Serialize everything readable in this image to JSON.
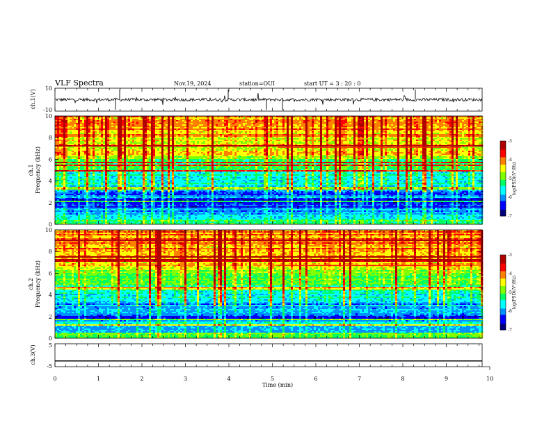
{
  "header": {
    "title": "VLF Spectra",
    "date": "Nov.19, 2024",
    "station": "station=OUI",
    "start": "start  UT =   3 : 20 : 0"
  },
  "colors": {
    "colormap": [
      "#00007a",
      "#0000ff",
      "#0090ff",
      "#00ffff",
      "#00ff60",
      "#7fff00",
      "#ffff00",
      "#ff8000",
      "#ff0000",
      "#b00000"
    ]
  },
  "chart_data": [
    {
      "type": "line",
      "id": "ch1",
      "ylabel": "ch.1(V)",
      "ylim": [
        -10,
        10
      ],
      "yticks": [
        "10",
        "-10"
      ],
      "trace_level": 0,
      "description_of_series": "broadband waveform amplitude, noisy with spikes"
    },
    {
      "type": "heatmap",
      "id": "spec1",
      "ylabel": "ch.1\nFrequency (kHz)",
      "ylim": [
        0,
        10
      ],
      "yticks": [
        "0",
        "2",
        "4",
        "6",
        "8",
        "10"
      ],
      "colorbar": {
        "label": "log(PSD)(V²/Hz)",
        "min": -7,
        "max": -3,
        "ticks": [
          "-3",
          "-4",
          "-5",
          "-6",
          "-7"
        ]
      },
      "bands_khz": [
        {
          "from": 0,
          "to": 0.6,
          "logpsd": -5.2
        },
        {
          "from": 0.6,
          "to": 1.6,
          "logpsd": -5.9
        },
        {
          "from": 1.6,
          "to": 2.4,
          "logpsd": -6.3
        },
        {
          "from": 2.4,
          "to": 3.6,
          "logpsd": -6.1
        },
        {
          "from": 3.6,
          "to": 5.0,
          "logpsd": -5.6
        },
        {
          "from": 5.0,
          "to": 6.4,
          "logpsd": -5.0
        },
        {
          "from": 6.4,
          "to": 8.0,
          "logpsd": -4.5
        },
        {
          "from": 8.0,
          "to": 10,
          "logpsd": -4.2
        }
      ],
      "tone_line_khz": 7.1
    },
    {
      "type": "heatmap",
      "id": "spec2",
      "ylabel": "ch.2\nFrequency (kHz)",
      "ylim": [
        0,
        10
      ],
      "yticks": [
        "0",
        "2",
        "4",
        "6",
        "8",
        "10"
      ],
      "colorbar": {
        "label": "log(PSD)(V²/Hz)",
        "min": -7,
        "max": -3,
        "ticks": [
          "-3",
          "-4",
          "-5",
          "-6",
          "-7"
        ]
      },
      "bands_khz": [
        {
          "from": 0,
          "to": 0.6,
          "logpsd": -5.0
        },
        {
          "from": 0.6,
          "to": 1.6,
          "logpsd": -5.8
        },
        {
          "from": 1.6,
          "to": 2.4,
          "logpsd": -6.2
        },
        {
          "from": 2.4,
          "to": 3.6,
          "logpsd": -5.9
        },
        {
          "from": 3.6,
          "to": 5.0,
          "logpsd": -5.5
        },
        {
          "from": 5.0,
          "to": 6.4,
          "logpsd": -4.9
        },
        {
          "from": 6.4,
          "to": 8.0,
          "logpsd": -4.4
        },
        {
          "from": 8.0,
          "to": 10,
          "logpsd": -4.1
        }
      ],
      "tone_line_khz": 6.7
    },
    {
      "type": "line",
      "id": "ch3",
      "ylabel": "ch.3(V)",
      "ylim": [
        -5,
        5
      ],
      "yticks": [
        "5",
        "-5"
      ],
      "trace_level": -2.5
    }
  ],
  "xaxis": {
    "label": "Time (min)",
    "xlim": [
      0,
      10
    ],
    "ticks": [
      "0",
      "1",
      "2",
      "3",
      "4",
      "5",
      "6",
      "7",
      "8",
      "9",
      "10"
    ]
  }
}
